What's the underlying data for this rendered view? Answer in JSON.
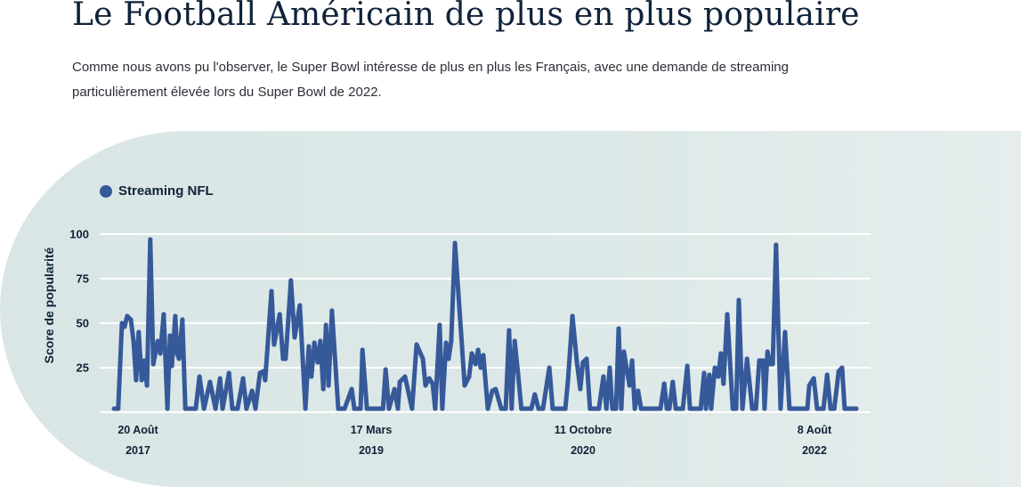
{
  "header": {
    "title": "Le Football Américain de plus en plus populaire",
    "description": "Comme nous avons pu l'observer, le Super Bowl intéresse de plus en plus les Français, avec une demande de streaming particulièrement élevée lors du Super Bowl de 2022."
  },
  "colors": {
    "series": "#36599a",
    "panel": "#dde9e8",
    "grid": "#ffffff",
    "text": "#0f2238"
  },
  "chart_data": {
    "type": "line",
    "title": "",
    "xlabel": "",
    "ylabel": "Score de popularité",
    "ylim": [
      0,
      100
    ],
    "grid": true,
    "legend_position": "top-left",
    "y_ticks": [
      "25",
      "50",
      "75",
      "100"
    ],
    "x_ticks": [
      {
        "date": "2017-08-20",
        "day": "20 Août",
        "year": "2017"
      },
      {
        "date": "2019-03-17",
        "day": "17 Mars",
        "year": "2019"
      },
      {
        "date": "2020-10-11",
        "day": "11 Octobre",
        "year": "2020"
      },
      {
        "date": "2022-08-08",
        "day": "8 Août",
        "year": "2022"
      }
    ],
    "series": [
      {
        "name": "Streaming NFL",
        "points": [
          [
            "2017-06-17",
            2
          ],
          [
            "2017-06-28",
            2
          ],
          [
            "2017-07-08",
            50
          ],
          [
            "2017-07-15",
            48
          ],
          [
            "2017-07-22",
            54
          ],
          [
            "2017-08-01",
            52
          ],
          [
            "2017-08-08",
            40
          ],
          [
            "2017-08-15",
            18
          ],
          [
            "2017-08-22",
            45
          ],
          [
            "2017-08-30",
            18
          ],
          [
            "2017-09-06",
            29
          ],
          [
            "2017-09-13",
            15
          ],
          [
            "2017-09-22",
            97
          ],
          [
            "2017-09-30",
            27
          ],
          [
            "2017-10-12",
            40
          ],
          [
            "2017-10-19",
            33
          ],
          [
            "2017-10-28",
            55
          ],
          [
            "2017-11-07",
            2
          ],
          [
            "2017-11-14",
            43
          ],
          [
            "2017-11-19",
            26
          ],
          [
            "2017-11-28",
            54
          ],
          [
            "2017-12-03",
            33
          ],
          [
            "2017-12-08",
            30
          ],
          [
            "2017-12-17",
            52
          ],
          [
            "2017-12-25",
            2
          ],
          [
            "2018-01-22",
            2
          ],
          [
            "2018-02-01",
            20
          ],
          [
            "2018-02-13",
            2
          ],
          [
            "2018-03-01",
            17
          ],
          [
            "2018-03-16",
            2
          ],
          [
            "2018-03-28",
            19
          ],
          [
            "2018-04-04",
            2
          ],
          [
            "2018-04-21",
            22
          ],
          [
            "2018-04-30",
            2
          ],
          [
            "2018-05-14",
            2
          ],
          [
            "2018-05-29",
            19
          ],
          [
            "2018-06-07",
            2
          ],
          [
            "2018-06-22",
            12
          ],
          [
            "2018-07-01",
            2
          ],
          [
            "2018-07-13",
            22
          ],
          [
            "2018-07-23",
            23
          ],
          [
            "2018-07-27",
            18
          ],
          [
            "2018-08-13",
            68
          ],
          [
            "2018-08-20",
            38
          ],
          [
            "2018-09-04",
            55
          ],
          [
            "2018-09-13",
            30
          ],
          [
            "2018-09-20",
            30
          ],
          [
            "2018-10-04",
            74
          ],
          [
            "2018-10-14",
            42
          ],
          [
            "2018-10-28",
            60
          ],
          [
            "2018-11-12",
            2
          ],
          [
            "2018-11-21",
            37
          ],
          [
            "2018-11-28",
            20
          ],
          [
            "2018-12-06",
            39
          ],
          [
            "2018-12-15",
            28
          ],
          [
            "2018-12-22",
            40
          ],
          [
            "2018-12-30",
            13
          ],
          [
            "2019-01-06",
            49
          ],
          [
            "2019-01-13",
            15
          ],
          [
            "2019-01-22",
            57
          ],
          [
            "2019-02-08",
            2
          ],
          [
            "2019-02-25",
            2
          ],
          [
            "2019-03-16",
            13
          ],
          [
            "2019-03-23",
            2
          ],
          [
            "2019-04-09",
            2
          ],
          [
            "2019-04-14",
            35
          ],
          [
            "2019-04-26",
            2
          ],
          [
            "2019-06-08",
            2
          ],
          [
            "2019-06-15",
            24
          ],
          [
            "2019-06-24",
            2
          ],
          [
            "2019-07-09",
            13
          ],
          [
            "2019-07-18",
            2
          ],
          [
            "2019-07-23",
            17
          ],
          [
            "2019-08-06",
            20
          ],
          [
            "2019-08-25",
            2
          ],
          [
            "2019-09-06",
            38
          ],
          [
            "2019-09-23",
            30
          ],
          [
            "2019-09-30",
            15
          ],
          [
            "2019-10-10",
            19
          ],
          [
            "2019-10-19",
            16
          ],
          [
            "2019-10-26",
            2
          ],
          [
            "2019-11-07",
            49
          ],
          [
            "2019-11-14",
            2
          ],
          [
            "2019-11-24",
            39
          ],
          [
            "2019-12-01",
            30
          ],
          [
            "2019-12-08",
            40
          ],
          [
            "2019-12-18",
            95
          ],
          [
            "2020-01-13",
            15
          ],
          [
            "2020-01-25",
            20
          ],
          [
            "2020-02-01",
            33
          ],
          [
            "2020-02-11",
            27
          ],
          [
            "2020-02-18",
            35
          ],
          [
            "2020-02-25",
            25
          ],
          [
            "2020-03-03",
            32
          ],
          [
            "2020-03-15",
            2
          ],
          [
            "2020-03-27",
            12
          ],
          [
            "2020-04-05",
            13
          ],
          [
            "2020-04-20",
            2
          ],
          [
            "2020-05-02",
            2
          ],
          [
            "2020-05-11",
            46
          ],
          [
            "2020-05-18",
            2
          ],
          [
            "2020-05-26",
            40
          ],
          [
            "2020-06-04",
            22
          ],
          [
            "2020-06-13",
            2
          ],
          [
            "2020-07-10",
            2
          ],
          [
            "2020-07-19",
            10
          ],
          [
            "2020-07-29",
            2
          ],
          [
            "2020-08-10",
            2
          ],
          [
            "2020-08-27",
            25
          ],
          [
            "2020-09-05",
            2
          ],
          [
            "2020-10-09",
            2
          ],
          [
            "2020-10-16",
            18
          ],
          [
            "2020-10-28",
            54
          ],
          [
            "2020-11-09",
            28
          ],
          [
            "2020-11-18",
            13
          ],
          [
            "2020-11-25",
            28
          ],
          [
            "2020-12-05",
            30
          ],
          [
            "2020-12-14",
            2
          ],
          [
            "2021-01-07",
            2
          ],
          [
            "2021-01-19",
            20
          ],
          [
            "2021-01-27",
            2
          ],
          [
            "2021-02-05",
            25
          ],
          [
            "2021-02-12",
            2
          ],
          [
            "2021-02-22",
            2
          ],
          [
            "2021-03-01",
            47
          ],
          [
            "2021-03-08",
            2
          ],
          [
            "2021-03-15",
            34
          ],
          [
            "2021-03-30",
            15
          ],
          [
            "2021-04-06",
            29
          ],
          [
            "2021-04-13",
            2
          ],
          [
            "2021-04-22",
            12
          ],
          [
            "2021-04-30",
            2
          ],
          [
            "2021-06-21",
            2
          ],
          [
            "2021-07-01",
            16
          ],
          [
            "2021-07-08",
            2
          ],
          [
            "2021-07-15",
            2
          ],
          [
            "2021-07-24",
            17
          ],
          [
            "2021-08-01",
            2
          ],
          [
            "2021-08-10",
            2
          ],
          [
            "2021-08-20",
            2
          ],
          [
            "2021-09-01",
            26
          ],
          [
            "2021-09-08",
            2
          ],
          [
            "2021-10-07",
            2
          ],
          [
            "2021-10-16",
            22
          ],
          [
            "2021-10-21",
            2
          ],
          [
            "2021-10-30",
            21
          ],
          [
            "2021-11-04",
            2
          ],
          [
            "2021-11-14",
            25
          ],
          [
            "2021-11-23",
            20
          ],
          [
            "2021-11-30",
            33
          ],
          [
            "2021-12-07",
            16
          ],
          [
            "2021-12-17",
            55
          ],
          [
            "2022-01-01",
            2
          ],
          [
            "2022-01-10",
            2
          ],
          [
            "2022-01-17",
            63
          ],
          [
            "2022-01-27",
            2
          ],
          [
            "2022-02-08",
            30
          ],
          [
            "2022-02-22",
            2
          ],
          [
            "2022-03-04",
            2
          ],
          [
            "2022-03-13",
            29
          ],
          [
            "2022-03-23",
            29
          ],
          [
            "2022-03-27",
            2
          ],
          [
            "2022-04-04",
            34
          ],
          [
            "2022-04-11",
            27
          ],
          [
            "2022-04-18",
            27
          ],
          [
            "2022-04-27",
            94
          ],
          [
            "2022-05-09",
            2
          ],
          [
            "2022-05-21",
            45
          ],
          [
            "2022-06-02",
            2
          ],
          [
            "2022-07-20",
            2
          ],
          [
            "2022-07-25",
            15
          ],
          [
            "2022-08-06",
            19
          ],
          [
            "2022-08-15",
            2
          ],
          [
            "2022-09-01",
            2
          ],
          [
            "2022-09-11",
            21
          ],
          [
            "2022-09-20",
            2
          ],
          [
            "2022-09-30",
            2
          ],
          [
            "2022-10-12",
            23
          ],
          [
            "2022-10-21",
            25
          ],
          [
            "2022-10-28",
            2
          ],
          [
            "2022-11-28",
            2
          ]
        ]
      }
    ]
  }
}
